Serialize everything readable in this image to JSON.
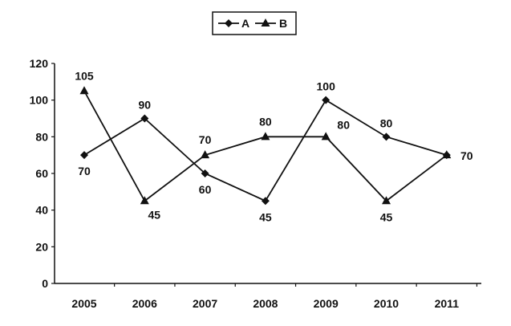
{
  "chart_data": {
    "type": "line",
    "title": "",
    "xlabel": "",
    "ylabel": "",
    "categories": [
      "2005",
      "2006",
      "2007",
      "2008",
      "2009",
      "2010",
      "2011"
    ],
    "ylim": [
      0,
      120
    ],
    "yticks": [
      "0",
      "20",
      "40",
      "60",
      "80",
      "100",
      "120"
    ],
    "grid": false,
    "legend": "top-center",
    "series": [
      {
        "name": "A",
        "marker": "diamond",
        "values": [
          70,
          90,
          60,
          45,
          100,
          80,
          70
        ],
        "labels": [
          "70",
          "90",
          "60",
          "45",
          "100",
          "80",
          "70"
        ]
      },
      {
        "name": "B",
        "marker": "triangle",
        "values": [
          105,
          45,
          70,
          80,
          80,
          45,
          70
        ],
        "labels": [
          "105",
          "45",
          "70",
          "80",
          "80",
          "45",
          ""
        ]
      }
    ],
    "colors": {
      "line": "#111111"
    }
  }
}
